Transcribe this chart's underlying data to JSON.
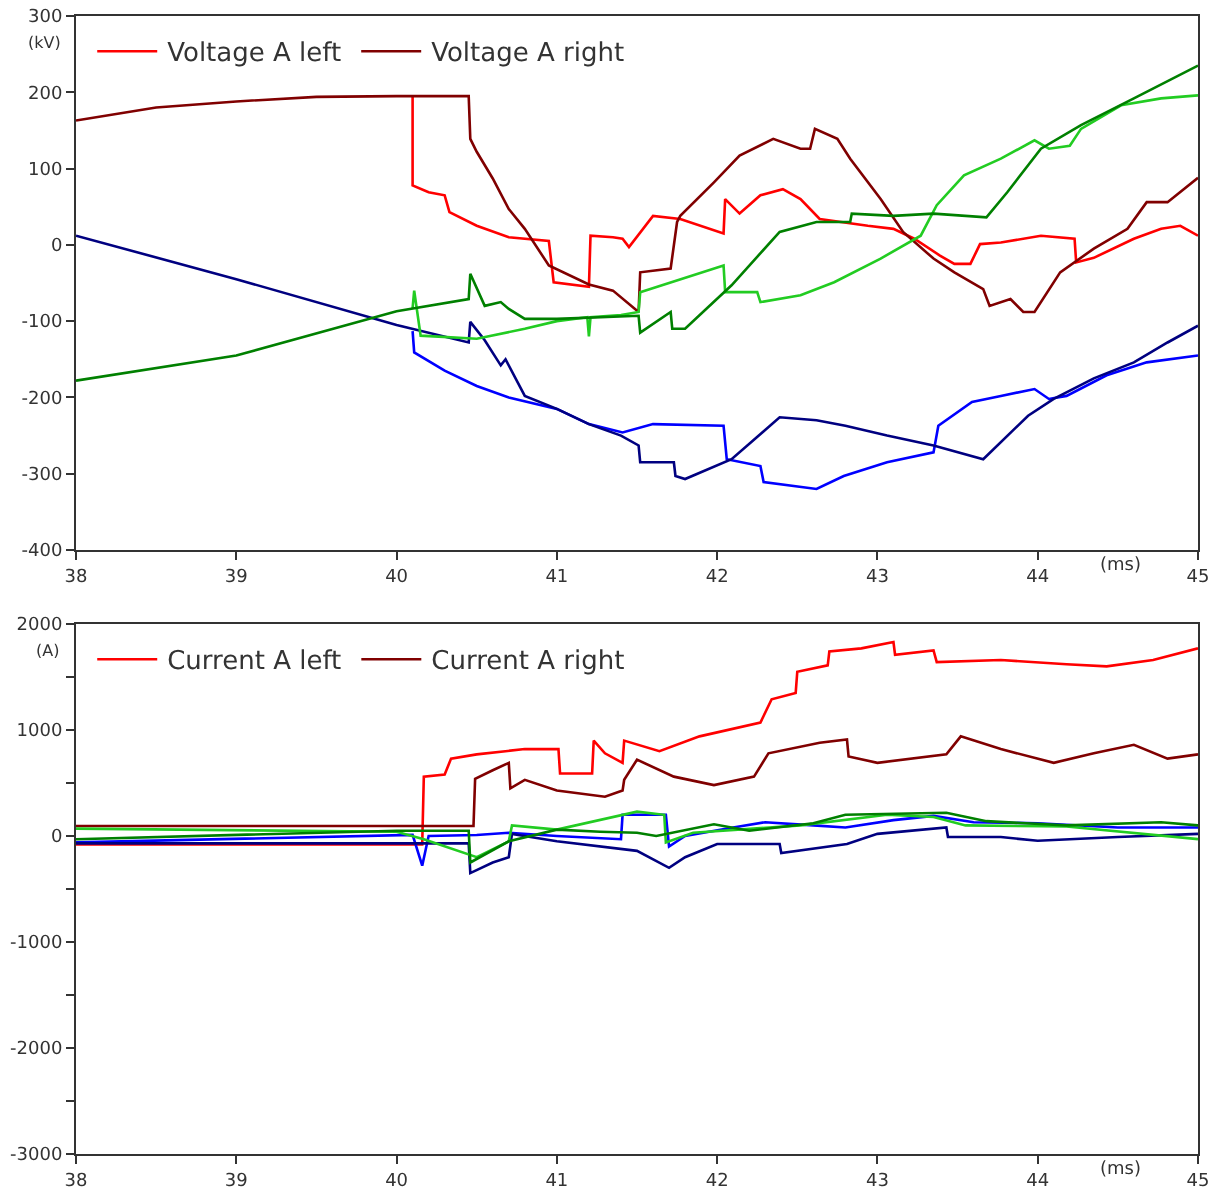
{
  "chart_data": [
    {
      "type": "line",
      "xlabel": "(ms)",
      "ylabel": "(kV)",
      "legend": "top left",
      "xlim": [
        38,
        45
      ],
      "ylim": [
        -400,
        300
      ],
      "xticks": [
        38,
        39,
        40,
        41,
        42,
        43,
        44,
        45
      ],
      "yticks": [
        -400,
        -300,
        -200,
        -100,
        0,
        100,
        200,
        300
      ],
      "series": [
        {
          "name": "Voltage A left",
          "color": "#ff0000",
          "x": [
            40.1,
            40.1,
            40.2,
            40.3,
            40.33,
            40.5,
            40.7,
            40.95,
            40.98,
            41.2,
            41.21,
            41.35,
            41.41,
            41.45,
            41.6,
            41.77,
            42.04,
            42.05,
            42.14,
            42.27,
            42.41,
            42.52,
            42.64,
            42.94,
            43.1,
            43.23,
            43.39,
            43.48,
            43.58,
            43.64,
            43.77,
            44.02,
            44.23,
            44.24,
            44.35,
            44.6,
            44.77,
            44.89,
            45
          ],
          "values": [
            195,
            78,
            69,
            65,
            43,
            25,
            10,
            5,
            -49,
            -55,
            12,
            10,
            8,
            -3,
            38,
            34,
            15,
            60,
            41,
            65,
            73,
            60,
            34,
            25,
            21,
            8,
            -14,
            -25,
            -25,
            1,
            3,
            12,
            8,
            -23,
            -17,
            8,
            21,
            25,
            12
          ]
        },
        {
          "name": "Voltage A right",
          "color": "#800000",
          "x": [
            38,
            38.5,
            39,
            39.5,
            40,
            40.45,
            40.46,
            40.5,
            40.6,
            40.7,
            40.8,
            40.95,
            41.2,
            41.35,
            41.51,
            41.52,
            41.71,
            41.75,
            41.77,
            41.98,
            42.14,
            42.35,
            42.52,
            42.58,
            42.61,
            42.75,
            42.83,
            43.02,
            43.16,
            43.35,
            43.48,
            43.66,
            43.7,
            43.83,
            43.91,
            43.98,
            44.14,
            44.35,
            44.56,
            44.68,
            44.81,
            45
          ],
          "values": [
            163,
            180,
            188,
            194,
            195,
            195,
            139,
            122,
            87,
            47,
            21,
            -27,
            -52,
            -60,
            -88,
            -36,
            -31,
            30,
            38,
            82,
            117,
            139,
            126,
            126,
            152,
            139,
            113,
            60,
            17,
            -18,
            -36,
            -58,
            -80,
            -71,
            -88,
            -88,
            -36,
            -5,
            21,
            56,
            56,
            88
          ]
        },
        {
          "color": "#0000ff",
          "x": [
            40.1,
            40.11,
            40.3,
            40.5,
            40.7,
            41,
            41.2,
            41.41,
            41.6,
            42.04,
            42.06,
            42.27,
            42.29,
            42.62,
            42.79,
            43.06,
            43.35,
            43.38,
            43.59,
            43.77,
            43.98,
            44.07,
            44.18,
            44.43,
            44.68,
            45
          ],
          "values": [
            -113,
            -141,
            -165,
            -185,
            -200,
            -215,
            -235,
            -246,
            -235,
            -237,
            -281,
            -290,
            -311,
            -320,
            -303,
            -285,
            -272,
            -237,
            -206,
            -198,
            -189,
            -202,
            -198,
            -171,
            -154,
            -145
          ]
        },
        {
          "color": "#000080",
          "x": [
            38,
            39,
            40,
            40.45,
            40.46,
            40.55,
            40.65,
            40.68,
            40.8,
            41,
            41.2,
            41.4,
            41.51,
            41.52,
            41.73,
            41.74,
            41.8,
            42.09,
            42.39,
            42.62,
            42.8,
            43.06,
            43.35,
            43.66,
            43.94,
            44.1,
            44.35,
            44.6,
            44.81,
            45
          ],
          "values": [
            12,
            -45,
            -105,
            -128,
            -101,
            -125,
            -158,
            -150,
            -198,
            -215,
            -235,
            -250,
            -263,
            -285,
            -285,
            -303,
            -307,
            -281,
            -226,
            -230,
            -237,
            -250,
            -263,
            -281,
            -224,
            -202,
            -175,
            -154,
            -128,
            -106
          ]
        },
        {
          "color": "#22cc22",
          "x": [
            40.1,
            40.11,
            40.15,
            40.5,
            40.8,
            41,
            41.19,
            41.2,
            41.21,
            41.4,
            41.51,
            41.52,
            42.04,
            42.05,
            42.25,
            42.27,
            42.52,
            42.73,
            43.02,
            43.27,
            43.37,
            43.54,
            43.77,
            43.98,
            44.07,
            44.2,
            44.27,
            44.52,
            44.77,
            45
          ],
          "values": [
            -83,
            -60,
            -119,
            -123,
            -110,
            -100,
            -95,
            -120,
            -95,
            -92,
            -88,
            -62,
            -27,
            -62,
            -62,
            -75,
            -66,
            -49,
            -18,
            12,
            52,
            91,
            113,
            137,
            126,
            130,
            152,
            183,
            192,
            196
          ]
        },
        {
          "color": "#008000",
          "x": [
            38,
            39,
            40,
            40.45,
            40.46,
            40.55,
            40.65,
            40.7,
            40.8,
            41,
            41.51,
            41.52,
            41.71,
            41.72,
            41.8,
            42.09,
            42.39,
            42.62,
            42.83,
            42.84,
            43.1,
            43.35,
            43.68,
            43.81,
            44.02,
            44.27,
            44.6,
            45
          ],
          "values": [
            -178,
            -145,
            -87,
            -71,
            -38,
            -80,
            -75,
            -84,
            -97,
            -97,
            -93,
            -115,
            -88,
            -110,
            -110,
            -53,
            17,
            30,
            30,
            41,
            38,
            41,
            36,
            69,
            126,
            157,
            192,
            235
          ]
        }
      ]
    },
    {
      "type": "line",
      "xlabel": "(ms)",
      "ylabel": "(A)",
      "legend": "top left",
      "xlim": [
        38,
        45
      ],
      "ylim": [
        -3000,
        2000
      ],
      "xticks": [
        38,
        39,
        40,
        41,
        42,
        43,
        44,
        45
      ],
      "yticks": [
        -3000,
        {
          "value": -2500,
          "label": null
        },
        -2000,
        {
          "value": -1500,
          "label": null
        },
        -1000,
        {
          "value": -500,
          "label": null
        },
        0,
        {
          "value": 500,
          "label": null
        },
        1000,
        {
          "value": 1500,
          "label": null
        },
        2000
      ],
      "series": [
        {
          "name": "Current A left",
          "color": "#ff0000",
          "x": [
            38,
            40,
            40.16,
            40.17,
            40.3,
            40.34,
            40.5,
            40.8,
            41.01,
            41.02,
            41.22,
            41.23,
            41.3,
            41.41,
            41.42,
            41.64,
            41.89,
            42.27,
            42.34,
            42.49,
            42.5,
            42.69,
            42.7,
            42.9,
            43.1,
            43.11,
            43.35,
            43.37,
            43.77,
            44.18,
            44.43,
            44.72,
            45
          ],
          "values": [
            -80,
            -80,
            -80,
            560,
            580,
            730,
            770,
            820,
            820,
            590,
            590,
            900,
            780,
            690,
            900,
            800,
            940,
            1070,
            1290,
            1350,
            1550,
            1610,
            1740,
            1770,
            1830,
            1710,
            1750,
            1640,
            1660,
            1620,
            1600,
            1660,
            1770
          ]
        },
        {
          "name": "Current A right",
          "color": "#800000",
          "x": [
            38,
            40.48,
            40.49,
            40.6,
            40.7,
            40.71,
            40.8,
            41,
            41.3,
            41.41,
            41.42,
            41.5,
            41.73,
            41.98,
            42.23,
            42.32,
            42.64,
            42.81,
            42.82,
            43,
            43.43,
            43.52,
            43.77,
            44.1,
            44.35,
            44.6,
            44.81,
            45
          ],
          "values": [
            95,
            95,
            540,
            620,
            690,
            450,
            530,
            430,
            370,
            430,
            530,
            720,
            560,
            480,
            560,
            780,
            880,
            910,
            750,
            690,
            770,
            940,
            820,
            690,
            780,
            860,
            730,
            770
          ]
        },
        {
          "color": "#0000ff",
          "x": [
            38,
            40.1,
            40.16,
            40.2,
            40.5,
            40.7,
            41,
            41.4,
            41.41,
            41.68,
            41.7,
            41.8,
            42.1,
            42.3,
            42.6,
            42.8,
            43.1,
            43.35,
            43.6,
            44,
            44.5,
            45
          ],
          "values": [
            -60,
            10,
            -280,
            0,
            10,
            30,
            0,
            -30,
            200,
            200,
            -100,
            0,
            80,
            130,
            100,
            80,
            150,
            190,
            130,
            120,
            80,
            80
          ]
        },
        {
          "color": "#000080",
          "x": [
            38,
            40.45,
            40.46,
            40.6,
            40.7,
            40.72,
            41,
            41.5,
            41.7,
            41.8,
            42,
            42.39,
            42.4,
            42.81,
            43,
            43.43,
            43.44,
            43.77,
            44,
            44.5,
            45
          ],
          "values": [
            -70,
            -70,
            -350,
            -250,
            -200,
            20,
            -50,
            -140,
            -300,
            -200,
            -75,
            -75,
            -160,
            -75,
            20,
            80,
            -10,
            -10,
            -45,
            -10,
            20
          ]
        },
        {
          "color": "#22cc22",
          "x": [
            38,
            40,
            40.17,
            40.5,
            40.7,
            40.72,
            41,
            41.5,
            41.67,
            41.68,
            41.85,
            42.52,
            43.06,
            43.35,
            43.55,
            44.18,
            45
          ],
          "values": [
            70,
            40,
            -30,
            -200,
            -50,
            100,
            60,
            230,
            200,
            -60,
            30,
            100,
            200,
            180,
            100,
            90,
            -30
          ]
        },
        {
          "color": "#008000",
          "x": [
            38,
            40,
            40.45,
            40.46,
            40.7,
            41,
            41.27,
            41.5,
            41.62,
            41.98,
            42.2,
            42.6,
            42.8,
            43.43,
            43.68,
            44.18,
            44.77,
            45
          ],
          "values": [
            -30,
            50,
            50,
            -250,
            -50,
            60,
            40,
            30,
            0,
            110,
            50,
            120,
            200,
            220,
            140,
            100,
            130,
            100
          ]
        }
      ]
    }
  ]
}
